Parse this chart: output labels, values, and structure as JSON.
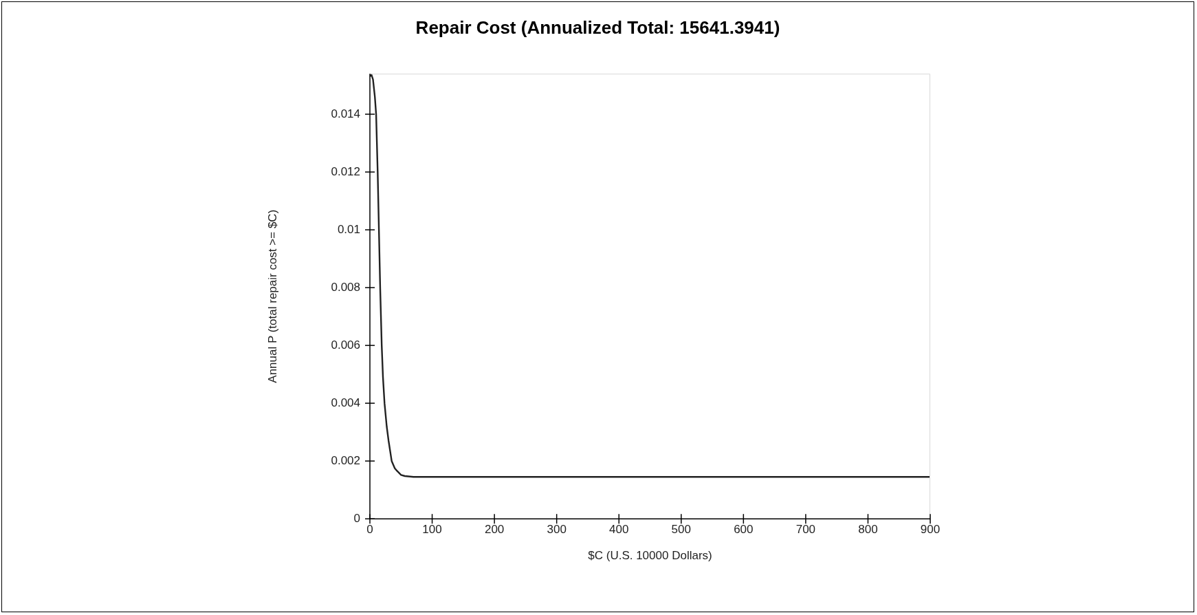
{
  "chart_data": {
    "type": "line",
    "title": "Repair Cost (Annualized Total: 15641.3941)",
    "xlabel": "$C (U.S. 10000 Dollars)",
    "ylabel": "Annual P (total repair cost >= $C)",
    "series": [
      {
        "color": "#222222",
        "x": [
          0,
          2,
          5,
          8,
          10,
          12.5,
          14.5,
          16.5,
          19,
          21,
          23.5,
          27,
          30,
          35,
          40,
          43.5,
          50,
          56,
          70,
          100,
          200,
          300,
          400,
          500,
          600,
          700,
          800,
          900
        ],
        "values": [
          0.0153,
          0.0154,
          0.0152,
          0.0146,
          0.014,
          0.012,
          0.01,
          0.008,
          0.006,
          0.0049,
          0.004,
          0.0032,
          0.0027,
          0.002,
          0.00175,
          0.00166,
          0.00152,
          0.00148,
          0.00145,
          0.00145,
          0.00145,
          0.00145,
          0.00145,
          0.00145,
          0.00145,
          0.00145,
          0.00145,
          0.00145
        ]
      }
    ],
    "xlim": [
      0,
      900
    ],
    "xticks": [
      0,
      100,
      200,
      300,
      400,
      500,
      600,
      700,
      800,
      900
    ],
    "ylim": [
      0,
      0.0154
    ],
    "yticks": [
      0,
      0.002,
      0.004,
      0.006,
      0.008,
      0.01,
      0.012,
      0.014
    ],
    "grid": false,
    "legend": false,
    "marker": "none",
    "line_style": "solid"
  }
}
